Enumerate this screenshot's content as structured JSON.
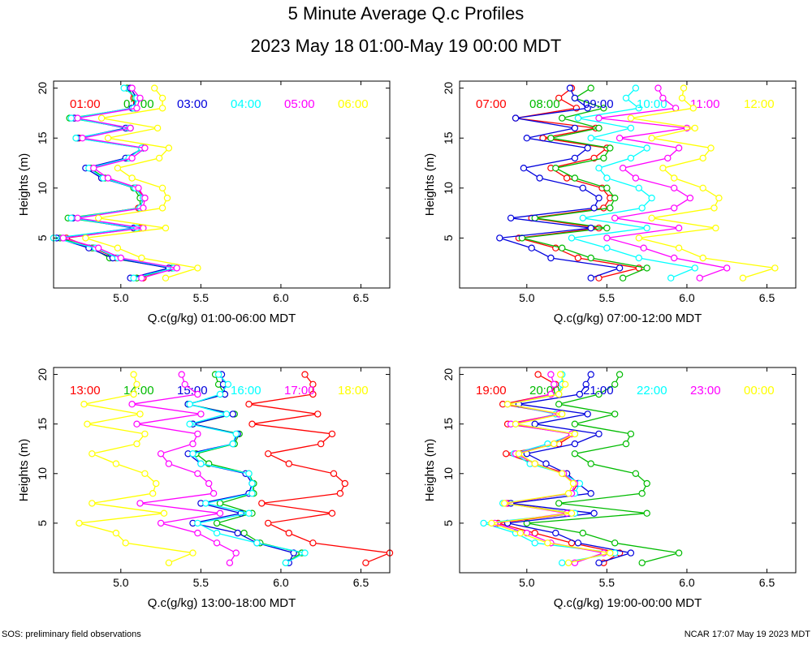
{
  "title": "5 Minute Average Q.c Profiles",
  "subtitle": "2023 May 18 01:00-May 19 00:00 MDT",
  "footer_left": "SOS: preliminary field observations",
  "footer_right": "NCAR 17:07 May 19 2023 MDT",
  "colors": [
    "#ff0000",
    "#00bb00",
    "#0000dd",
    "#00ffff",
    "#ff00ff",
    "#ffff00"
  ],
  "chart_data": [
    {
      "type": "line",
      "xlabel": "Q.c(g/kg) 01:00-06:00 MDT",
      "ylabel": "Heights (m)",
      "xlim": [
        4.58,
        6.68
      ],
      "ylim": [
        0,
        20.7
      ],
      "xticks": [
        5.0,
        5.5,
        6.0,
        6.5
      ],
      "yticks": [
        5,
        10,
        15,
        20
      ],
      "heights": [
        1,
        2,
        3,
        4,
        5,
        6,
        7,
        8,
        9,
        10,
        11,
        12,
        13,
        14,
        15,
        16,
        17,
        18,
        19,
        20
      ],
      "series": [
        {
          "name": "01:00",
          "values": [
            5.14,
            5.3,
            4.97,
            4.83,
            4.66,
            5.12,
            4.7,
            5.11,
            5.15,
            5.1,
            4.88,
            4.81,
            5.05,
            5.13,
            4.74,
            5.04,
            4.71,
            5.08,
            5.08,
            5.04
          ]
        },
        {
          "name": "02:00",
          "values": [
            5.1,
            5.32,
            4.93,
            4.82,
            4.62,
            5.1,
            4.67,
            5.12,
            5.12,
            5.08,
            4.9,
            4.81,
            5.04,
            5.14,
            4.72,
            5.06,
            4.68,
            5.09,
            5.09,
            5.04
          ]
        },
        {
          "name": "03:00",
          "values": [
            5.06,
            5.3,
            4.95,
            4.8,
            4.6,
            5.08,
            4.7,
            5.12,
            5.14,
            5.09,
            4.88,
            4.78,
            5.03,
            5.14,
            4.73,
            5.03,
            4.71,
            5.07,
            5.1,
            5.06
          ]
        },
        {
          "name": "04:00",
          "values": [
            5.08,
            5.33,
            4.98,
            4.84,
            4.58,
            5.1,
            4.69,
            5.12,
            5.14,
            5.09,
            4.89,
            4.8,
            5.05,
            5.13,
            4.72,
            5.05,
            4.69,
            5.08,
            5.1,
            5.02
          ]
        },
        {
          "name": "05:00",
          "values": [
            5.13,
            5.35,
            5.0,
            4.86,
            4.64,
            5.14,
            4.73,
            5.14,
            5.15,
            5.11,
            4.92,
            4.83,
            5.07,
            5.15,
            4.76,
            5.06,
            4.73,
            5.1,
            5.12,
            5.07
          ]
        },
        {
          "name": "06:00",
          "values": [
            5.28,
            5.48,
            5.13,
            4.98,
            4.78,
            5.28,
            4.86,
            5.26,
            5.29,
            5.26,
            5.07,
            4.98,
            5.24,
            5.3,
            4.92,
            5.23,
            4.88,
            5.26,
            5.26,
            5.21
          ]
        }
      ]
    },
    {
      "type": "line",
      "xlabel": "Q.c(g/kg) 07:00-12:00 MDT",
      "ylabel": "Heights (m)",
      "xlim": [
        4.58,
        6.68
      ],
      "ylim": [
        0,
        20.7
      ],
      "xticks": [
        5.0,
        5.5,
        6.0,
        6.5
      ],
      "yticks": [
        5,
        10,
        15,
        20
      ],
      "heights": [
        1,
        2,
        3,
        4,
        5,
        6,
        7,
        8,
        9,
        10,
        11,
        12,
        13,
        14,
        15,
        16,
        17,
        18,
        19,
        20
      ],
      "series": [
        {
          "name": "07:00",
          "values": [
            5.45,
            5.7,
            5.32,
            5.18,
            4.95,
            5.45,
            5.03,
            5.48,
            5.52,
            5.47,
            5.25,
            5.15,
            5.42,
            5.5,
            5.1,
            5.43,
            4.93,
            5.31,
            5.2,
            5.28
          ]
        },
        {
          "name": "08:00",
          "values": [
            5.6,
            5.75,
            5.4,
            5.22,
            4.97,
            5.5,
            5.05,
            5.52,
            5.55,
            5.5,
            5.3,
            5.18,
            5.48,
            5.52,
            5.15,
            5.45,
            5.22,
            5.48,
            5.3,
            5.4
          ]
        },
        {
          "name": "09:00",
          "values": [
            5.4,
            5.58,
            5.15,
            5.03,
            4.83,
            5.4,
            4.9,
            5.42,
            5.45,
            5.35,
            5.08,
            4.98,
            5.3,
            5.38,
            5.0,
            5.3,
            4.93,
            5.38,
            5.3,
            5.27
          ]
        },
        {
          "name": "10:00",
          "values": [
            5.9,
            6.05,
            5.7,
            5.5,
            5.28,
            5.75,
            5.35,
            5.72,
            5.78,
            5.7,
            5.5,
            5.45,
            5.65,
            5.75,
            5.4,
            5.65,
            5.32,
            5.7,
            5.62,
            5.68
          ]
        },
        {
          "name": "11:00",
          "values": [
            6.08,
            6.25,
            5.92,
            5.73,
            5.5,
            5.95,
            5.55,
            5.92,
            6.02,
            5.92,
            5.68,
            5.6,
            5.88,
            5.95,
            5.58,
            6.0,
            5.45,
            5.93,
            5.85,
            5.82
          ]
        },
        {
          "name": "12:00",
          "values": [
            6.35,
            6.55,
            6.1,
            5.95,
            5.7,
            6.18,
            5.78,
            6.17,
            6.2,
            6.1,
            5.92,
            5.85,
            6.1,
            6.15,
            5.78,
            6.05,
            5.65,
            6.04,
            5.97,
            5.98
          ]
        }
      ]
    },
    {
      "type": "line",
      "xlabel": "Q.c(g/kg) 13:00-18:00 MDT",
      "ylabel": "Heights (m)",
      "xlim": [
        4.58,
        6.68
      ],
      "ylim": [
        0,
        20.7
      ],
      "xticks": [
        5.0,
        5.5,
        6.0,
        6.5
      ],
      "yticks": [
        5,
        10,
        15,
        20
      ],
      "heights": [
        1,
        2,
        3,
        4,
        5,
        6,
        7,
        8,
        9,
        10,
        11,
        12,
        13,
        14,
        15,
        16,
        17,
        18,
        19,
        20
      ],
      "series": [
        {
          "name": "13:00",
          "values": [
            6.53,
            6.68,
            6.2,
            6.05,
            5.92,
            6.32,
            5.88,
            6.37,
            6.4,
            6.33,
            6.05,
            5.92,
            6.25,
            6.32,
            5.82,
            6.23,
            5.8,
            6.2,
            6.2,
            6.15
          ]
        },
        {
          "name": "14:00",
          "values": [
            6.03,
            6.13,
            5.87,
            5.77,
            5.6,
            5.82,
            5.62,
            5.83,
            5.83,
            5.8,
            5.55,
            5.47,
            5.71,
            5.74,
            5.45,
            5.71,
            5.42,
            5.65,
            5.61,
            5.59
          ]
        },
        {
          "name": "15:00",
          "values": [
            6.05,
            6.08,
            5.85,
            5.73,
            5.45,
            5.75,
            5.5,
            5.8,
            5.82,
            5.78,
            5.5,
            5.42,
            5.7,
            5.73,
            5.45,
            5.7,
            5.42,
            5.65,
            5.64,
            5.63
          ]
        },
        {
          "name": "16:00",
          "values": [
            6.03,
            6.15,
            5.85,
            5.6,
            5.48,
            5.8,
            5.53,
            5.82,
            5.82,
            5.8,
            5.5,
            5.45,
            5.7,
            5.72,
            5.43,
            5.66,
            5.43,
            5.62,
            5.67,
            5.61
          ]
        },
        {
          "name": "17:00",
          "values": [
            5.68,
            5.72,
            5.6,
            5.48,
            5.25,
            5.62,
            5.12,
            5.58,
            5.55,
            5.48,
            5.3,
            5.25,
            5.45,
            5.48,
            5.1,
            5.5,
            5.07,
            5.48,
            5.4,
            5.38
          ]
        },
        {
          "name": "18:00",
          "values": [
            5.3,
            5.45,
            5.03,
            4.97,
            4.74,
            5.27,
            4.82,
            5.2,
            5.22,
            5.15,
            4.97,
            4.82,
            5.1,
            5.15,
            4.79,
            5.12,
            4.77,
            5.08,
            5.1,
            5.08
          ]
        }
      ]
    },
    {
      "type": "line",
      "xlabel": "Q.c(g/kg) 19:00-00:00 MDT",
      "ylabel": "Heights (m)",
      "xlim": [
        4.58,
        6.68
      ],
      "ylim": [
        0,
        20.7
      ],
      "xticks": [
        5.0,
        5.5,
        6.0,
        6.5
      ],
      "yticks": [
        5,
        10,
        15,
        20
      ],
      "heights": [
        1,
        2,
        3,
        4,
        5,
        6,
        7,
        8,
        9,
        10,
        11,
        12,
        13,
        14,
        15,
        16,
        17,
        18,
        19,
        20
      ],
      "series": [
        {
          "name": "19:00",
          "values": [
            5.48,
            5.58,
            5.28,
            5.05,
            4.82,
            5.3,
            4.88,
            5.28,
            5.32,
            5.25,
            5.05,
            4.87,
            5.2,
            5.3,
            4.88,
            5.2,
            4.85,
            5.15,
            5.18,
            5.07
          ]
        },
        {
          "name": "20:00",
          "values": [
            5.72,
            5.95,
            5.55,
            5.35,
            5.0,
            5.75,
            5.2,
            5.72,
            5.75,
            5.68,
            5.4,
            5.3,
            5.62,
            5.65,
            5.3,
            5.55,
            5.2,
            5.45,
            5.55,
            5.58
          ]
        },
        {
          "name": "21:00",
          "values": [
            5.45,
            5.65,
            5.32,
            5.18,
            4.88,
            5.42,
            4.9,
            5.4,
            5.32,
            5.25,
            5.12,
            5.0,
            5.3,
            5.45,
            5.05,
            5.38,
            4.95,
            5.33,
            5.37,
            5.4
          ]
        },
        {
          "name": "22:00",
          "values": [
            5.22,
            5.55,
            5.05,
            4.93,
            4.73,
            5.3,
            4.85,
            5.3,
            5.33,
            5.23,
            5.02,
            4.92,
            5.13,
            5.3,
            4.93,
            5.18,
            4.88,
            5.2,
            5.22,
            5.22
          ]
        },
        {
          "name": "23:00",
          "values": [
            5.3,
            5.48,
            5.15,
            5.0,
            4.8,
            5.25,
            4.87,
            5.28,
            5.3,
            5.23,
            5.05,
            4.93,
            5.17,
            5.28,
            4.9,
            5.2,
            4.88,
            5.15,
            5.17,
            5.15
          ]
        },
        {
          "name": "00:00",
          "values": [
            5.26,
            5.52,
            5.13,
            4.96,
            4.78,
            5.28,
            4.86,
            5.26,
            5.29,
            5.22,
            5.05,
            4.95,
            5.17,
            5.3,
            4.93,
            5.22,
            4.88,
            5.2,
            5.24,
            5.21
          ]
        }
      ]
    }
  ]
}
